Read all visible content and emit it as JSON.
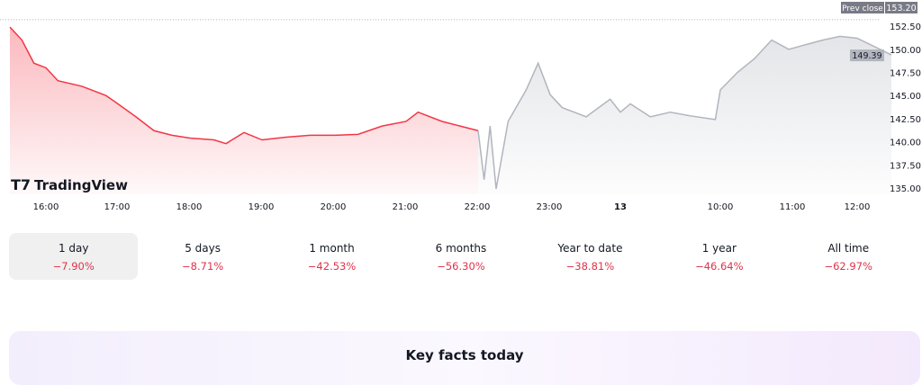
{
  "chart_data": {
    "type": "line",
    "y_ticks": [
      "135.00",
      "137.50",
      "140.00",
      "142.50",
      "145.00",
      "147.50",
      "150.00",
      "152.50"
    ],
    "ylim": [
      134.5,
      153.5
    ],
    "x_ticks": [
      "16:00",
      "17:00",
      "18:00",
      "19:00",
      "20:00",
      "21:00",
      "22:00",
      "23:00",
      "13",
      "10:00",
      "11:00",
      "12:00"
    ],
    "prev_close": {
      "label": "Prev close",
      "value": "153.20"
    },
    "last_price": "149.39",
    "series": [
      {
        "color": "#f23645",
        "points": [
          [
            "d1",
            "15:30",
            152.4
          ],
          [
            "d1",
            "15:40",
            151
          ],
          [
            "d1",
            "15:50",
            148.5
          ],
          [
            "d1",
            "16:00",
            148
          ],
          [
            "d1",
            "16:10",
            146.6
          ],
          [
            "d1",
            "16:30",
            146
          ],
          [
            "d1",
            "16:50",
            145
          ],
          [
            "d1",
            "17:00",
            144.1
          ],
          [
            "d1",
            "17:15",
            142.7
          ],
          [
            "d1",
            "17:30",
            141.2
          ],
          [
            "d1",
            "17:45",
            140.7
          ],
          [
            "d1",
            "18:00",
            140.4
          ],
          [
            "d1",
            "18:20",
            140.2
          ],
          [
            "d1",
            "18:30",
            139.8
          ],
          [
            "d1",
            "18:45",
            141
          ],
          [
            "d1",
            "19:00",
            140.2
          ],
          [
            "d1",
            "19:20",
            140.5
          ],
          [
            "d1",
            "19:40",
            140.7
          ],
          [
            "d1",
            "20:00",
            140.7
          ],
          [
            "d1",
            "20:20",
            140.8
          ],
          [
            "d1",
            "20:40",
            141.7
          ],
          [
            "d1",
            "21:00",
            142.2
          ],
          [
            "d1",
            "21:10",
            143.2
          ],
          [
            "d1",
            "21:30",
            142.2
          ],
          [
            "d1",
            "21:45",
            141.7
          ],
          [
            "d1",
            "22:00",
            141.2
          ]
        ]
      },
      {
        "color": "#b2b5be",
        "points": [
          [
            "d1",
            "22:00",
            141.2
          ],
          [
            "d1",
            "22:05",
            135.9
          ],
          [
            "d1",
            "22:10",
            141.7
          ],
          [
            "d1",
            "22:15",
            134.9
          ],
          [
            "d1",
            "22:25",
            142.2
          ],
          [
            "d1",
            "22:40",
            145.6
          ],
          [
            "d1",
            "22:50",
            148.5
          ],
          [
            "d1",
            "23:00",
            145.1
          ],
          [
            "d1",
            "23:10",
            143.7
          ],
          [
            "d1",
            "23:30",
            142.7
          ],
          [
            "d1",
            "23:50",
            144.6
          ],
          [
            "d2",
            "00:00",
            143.2
          ],
          [
            "d2",
            "01:00",
            144.1
          ],
          [
            "d2",
            "03:00",
            142.7
          ],
          [
            "d2",
            "05:00",
            143.2
          ],
          [
            "d2",
            "07:00",
            142.8
          ],
          [
            "d2",
            "09:30",
            142.4
          ],
          [
            "d2",
            "10:00",
            145.6
          ],
          [
            "d2",
            "10:15",
            147.5
          ],
          [
            "d2",
            "10:30",
            149
          ],
          [
            "d2",
            "10:45",
            151
          ],
          [
            "d2",
            "11:00",
            150
          ],
          [
            "d2",
            "11:15",
            150.5
          ],
          [
            "d2",
            "11:30",
            151
          ],
          [
            "d2",
            "11:45",
            151.4
          ],
          [
            "d2",
            "12:00",
            151.2
          ],
          [
            "d2",
            "12:20",
            150
          ],
          [
            "d2",
            "12:30",
            149.39
          ]
        ]
      }
    ]
  },
  "brand": "TradingView",
  "tabs": [
    {
      "label": "1 day",
      "change": "−7.90%"
    },
    {
      "label": "5 days",
      "change": "−8.71%"
    },
    {
      "label": "1 month",
      "change": "−42.53%"
    },
    {
      "label": "6 months",
      "change": "−56.30%"
    },
    {
      "label": "Year to date",
      "change": "−38.81%"
    },
    {
      "label": "1 year",
      "change": "−46.64%"
    },
    {
      "label": "All time",
      "change": "−62.97%"
    }
  ],
  "key_facts_title": "Key facts today"
}
